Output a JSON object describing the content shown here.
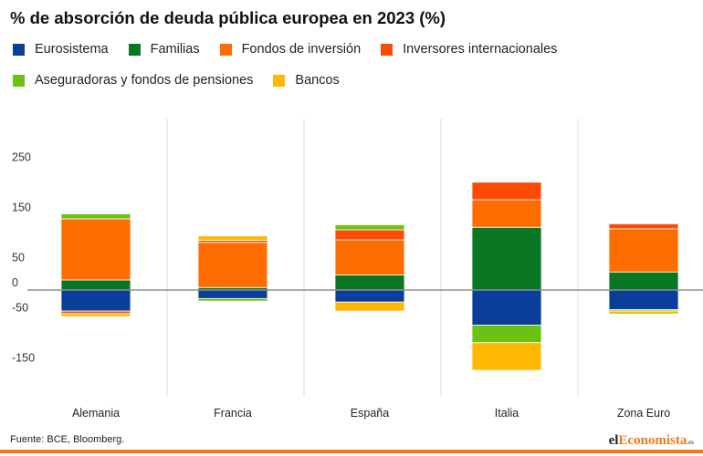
{
  "title": "% de absorción de deuda pública europea en 2023 (%)",
  "source": "Fuente: BCE, Bloomberg.",
  "logo": {
    "part1": "el",
    "part2": "Economista",
    "part3": ".es"
  },
  "colors": {
    "eurosistema": "#0b3d9b",
    "familias": "#087622",
    "fondos": "#ff6d00",
    "inversores": "#fd4b06",
    "aseguradoras": "#6cc114",
    "bancos": "#feb801",
    "grid": "#dddddd",
    "zero": "#8e8e8e",
    "accent": "#f07b1a"
  },
  "legend": [
    {
      "key": "eurosistema",
      "label": "Eurosistema"
    },
    {
      "key": "familias",
      "label": "Familias"
    },
    {
      "key": "fondos",
      "label": "Fondos de inversión"
    },
    {
      "key": "inversores",
      "label": "Inversores internacionales"
    },
    {
      "key": "aseguradoras",
      "label": "Aseguradoras y fondos de pensiones"
    },
    {
      "key": "bancos",
      "label": "Bancos"
    }
  ],
  "chart_data": {
    "type": "bar",
    "stacked": true,
    "title": "% de absorción de deuda pública europea en 2023 (%)",
    "categories": [
      "Alemania",
      "Francia",
      "España",
      "Italia",
      "Zona Euro"
    ],
    "y_ticks": [
      250,
      150,
      50,
      0,
      -50,
      -150
    ],
    "ylim": [
      -150,
      250
    ],
    "grid": "vertical separators",
    "legend_position": "top",
    "series": [
      {
        "key": "eurosistema",
        "name": "Eurosistema",
        "values": [
          -42,
          -17,
          -24,
          -70,
          -39
        ]
      },
      {
        "key": "familias",
        "name": "Familias",
        "values": [
          20,
          5,
          30,
          125,
          36
        ]
      },
      {
        "key": "fondos",
        "name": "Fondos de inversión",
        "values": [
          122,
          90,
          70,
          55,
          86
        ]
      },
      {
        "key": "inversores",
        "name": "Inversores internacionales",
        "values": [
          -5,
          4,
          20,
          35,
          10
        ]
      },
      {
        "key": "aseguradoras",
        "name": "Aseguradoras y fondos de pensiones",
        "values": [
          10,
          -5,
          10,
          -35,
          -3
        ]
      },
      {
        "key": "bancos",
        "name": "Bancos",
        "values": [
          -6,
          9,
          -18,
          -55,
          -6
        ]
      }
    ]
  }
}
